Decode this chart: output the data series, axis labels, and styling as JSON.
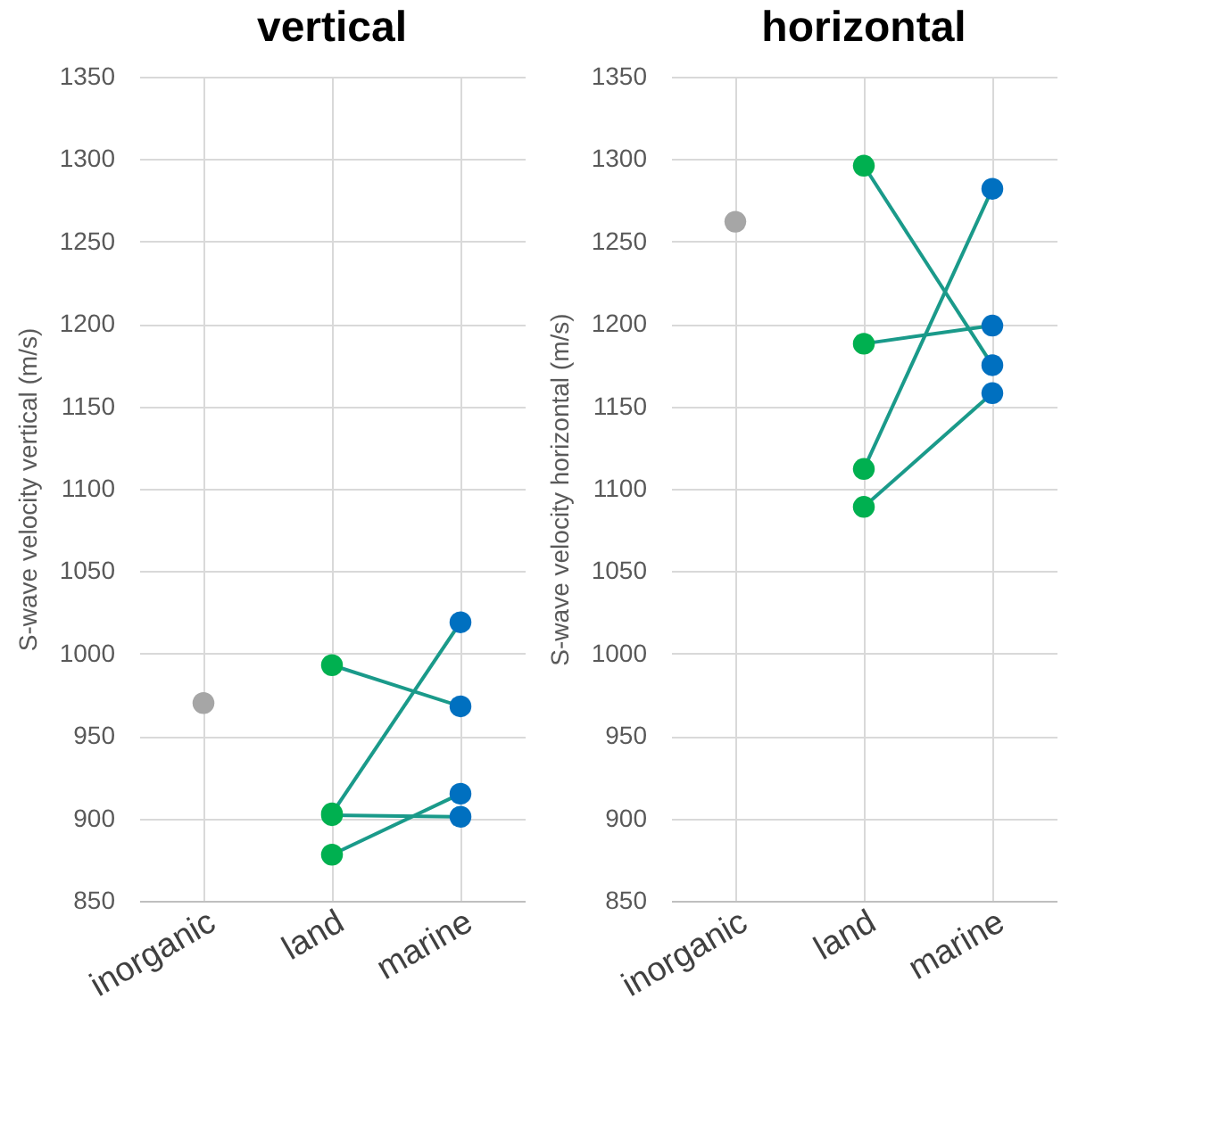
{
  "chart_data": [
    {
      "type": "line",
      "title": "vertical",
      "ylabel": "S-wave velocity vertical (m/s)",
      "categories": [
        "inorganic",
        "land",
        "marine"
      ],
      "ylim": [
        850,
        1350
      ],
      "yticks": [
        850,
        900,
        950,
        1000,
        1050,
        1100,
        1150,
        1200,
        1250,
        1300,
        1350
      ],
      "grid": true,
      "marker": "circle",
      "series": [
        {
          "type": "scatter",
          "color": "#a6a6a6",
          "values": [
            970,
            null,
            null
          ]
        },
        {
          "color": "#1a9a8a",
          "colors": [
            null,
            "#00b050",
            "#0070c0"
          ],
          "values": [
            null,
            993,
            968
          ]
        },
        {
          "color": "#1a9a8a",
          "colors": [
            null,
            "#00b050",
            "#0070c0"
          ],
          "values": [
            null,
            903,
            1019
          ]
        },
        {
          "color": "#1a9a8a",
          "colors": [
            null,
            "#00b050",
            "#0070c0"
          ],
          "values": [
            null,
            902,
            901
          ]
        },
        {
          "color": "#1a9a8a",
          "colors": [
            null,
            "#00b050",
            "#0070c0"
          ],
          "values": [
            null,
            878,
            915
          ]
        }
      ]
    },
    {
      "type": "line",
      "title": "horizontal",
      "ylabel": "S-wave velocity horizontal (m/s)",
      "categories": [
        "inorganic",
        "land",
        "marine"
      ],
      "ylim": [
        850,
        1350
      ],
      "yticks": [
        850,
        900,
        950,
        1000,
        1050,
        1100,
        1150,
        1200,
        1250,
        1300,
        1350
      ],
      "grid": true,
      "marker": "circle",
      "series": [
        {
          "type": "scatter",
          "color": "#a6a6a6",
          "values": [
            1262,
            null,
            null
          ]
        },
        {
          "color": "#1a9a8a",
          "colors": [
            null,
            "#00b050",
            "#0070c0"
          ],
          "values": [
            null,
            1296,
            1175
          ]
        },
        {
          "color": "#1a9a8a",
          "colors": [
            null,
            "#00b050",
            "#0070c0"
          ],
          "values": [
            null,
            1188,
            1199
          ]
        },
        {
          "color": "#1a9a8a",
          "colors": [
            null,
            "#00b050",
            "#0070c0"
          ],
          "values": [
            null,
            1112,
            1282
          ]
        },
        {
          "color": "#1a9a8a",
          "colors": [
            null,
            "#00b050",
            "#0070c0"
          ],
          "values": [
            null,
            1089,
            1158
          ]
        }
      ]
    }
  ]
}
